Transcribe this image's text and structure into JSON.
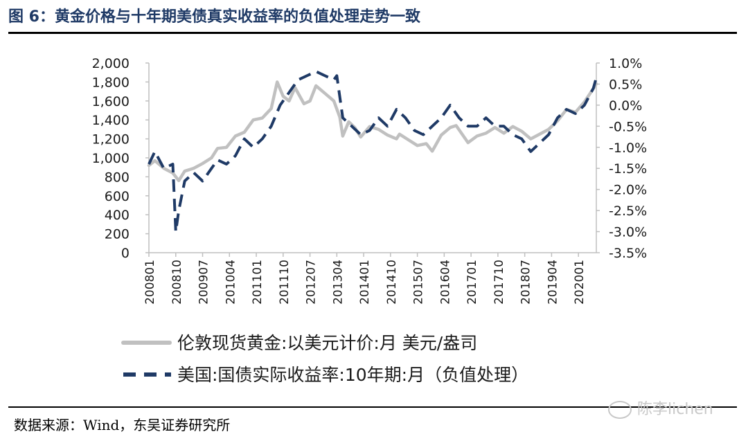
{
  "header": {
    "title": "图 6：黄金价格与十年期美债真实收益率的负值处理走势一致"
  },
  "footer": {
    "source": "数据来源：Wind，东吴证券研究所",
    "watermark": "陈李lichen"
  },
  "chart_data": {
    "type": "line",
    "title": "",
    "x_ticks": [
      "200801",
      "200810",
      "200907",
      "201004",
      "201101",
      "201110",
      "201207",
      "201304",
      "201401",
      "201410",
      "201507",
      "201604",
      "201701",
      "201710",
      "201807",
      "201904",
      "202001"
    ],
    "left_axis": {
      "ticks": [
        "2,000",
        "1,800",
        "1,600",
        "1,400",
        "1,200",
        "1,000",
        "800",
        "600",
        "400",
        "200",
        "0"
      ],
      "ylim": [
        0,
        2000
      ]
    },
    "right_axis": {
      "ticks": [
        "1.0%",
        "0.5%",
        "0.0%",
        "-0.5%",
        "-1.0%",
        "-1.5%",
        "-2.0%",
        "-2.5%",
        "-3.0%",
        "-3.5%"
      ],
      "ylim": [
        -3.5,
        1.0
      ]
    },
    "legend_placement": "bottom",
    "grid": false,
    "series": [
      {
        "name": "伦敦现货黄金:以美元计价:月 美元/盎司",
        "axis": "left",
        "style": "solid",
        "color": "#c0c0c0",
        "points": [
          [
            "2008-01",
            920
          ],
          [
            "2008-03",
            970
          ],
          [
            "2008-06",
            890
          ],
          [
            "2008-09",
            840
          ],
          [
            "2008-11",
            760
          ],
          [
            "2009-01",
            860
          ],
          [
            "2009-04",
            890
          ],
          [
            "2009-07",
            940
          ],
          [
            "2009-10",
            1000
          ],
          [
            "2009-12",
            1100
          ],
          [
            "2010-03",
            1110
          ],
          [
            "2010-06",
            1230
          ],
          [
            "2010-09",
            1270
          ],
          [
            "2010-12",
            1400
          ],
          [
            "2011-03",
            1420
          ],
          [
            "2011-06",
            1520
          ],
          [
            "2011-08",
            1800
          ],
          [
            "2011-10",
            1650
          ],
          [
            "2011-12",
            1600
          ],
          [
            "2012-02",
            1740
          ],
          [
            "2012-05",
            1570
          ],
          [
            "2012-07",
            1600
          ],
          [
            "2012-09",
            1760
          ],
          [
            "2012-12",
            1680
          ],
          [
            "2013-03",
            1600
          ],
          [
            "2013-05",
            1430
          ],
          [
            "2013-06",
            1230
          ],
          [
            "2013-08",
            1380
          ],
          [
            "2013-10",
            1320
          ],
          [
            "2013-12",
            1220
          ],
          [
            "2014-03",
            1330
          ],
          [
            "2014-06",
            1300
          ],
          [
            "2014-09",
            1240
          ],
          [
            "2014-12",
            1200
          ],
          [
            "2015-01",
            1250
          ],
          [
            "2015-04",
            1190
          ],
          [
            "2015-07",
            1130
          ],
          [
            "2015-10",
            1150
          ],
          [
            "2015-12",
            1070
          ],
          [
            "2016-03",
            1240
          ],
          [
            "2016-06",
            1320
          ],
          [
            "2016-08",
            1340
          ],
          [
            "2016-12",
            1160
          ],
          [
            "2017-03",
            1230
          ],
          [
            "2017-06",
            1260
          ],
          [
            "2017-09",
            1320
          ],
          [
            "2017-12",
            1260
          ],
          [
            "2018-03",
            1330
          ],
          [
            "2018-06",
            1280
          ],
          [
            "2018-09",
            1200
          ],
          [
            "2018-12",
            1250
          ],
          [
            "2019-03",
            1300
          ],
          [
            "2019-06",
            1390
          ],
          [
            "2019-09",
            1510
          ],
          [
            "2019-12",
            1480
          ],
          [
            "2020-03",
            1590
          ],
          [
            "2020-06",
            1730
          ],
          [
            "2020-07",
            1780
          ]
        ]
      },
      {
        "name": "美国:国债实际收益率:10年期:月（负值处理）",
        "axis": "right",
        "style": "dashed",
        "color": "#1f3a66",
        "points": [
          [
            "2008-01",
            -1.4
          ],
          [
            "2008-03",
            -1.1
          ],
          [
            "2008-06",
            -1.5
          ],
          [
            "2008-09",
            -1.4
          ],
          [
            "2008-10",
            -3.0
          ],
          [
            "2008-11",
            -2.5
          ],
          [
            "2009-01",
            -1.8
          ],
          [
            "2009-04",
            -1.6
          ],
          [
            "2009-07",
            -1.8
          ],
          [
            "2009-10",
            -1.5
          ],
          [
            "2009-12",
            -1.3
          ],
          [
            "2010-03",
            -1.4
          ],
          [
            "2010-06",
            -1.2
          ],
          [
            "2010-09",
            -0.8
          ],
          [
            "2010-12",
            -1.0
          ],
          [
            "2011-03",
            -0.8
          ],
          [
            "2011-06",
            -0.5
          ],
          [
            "2011-09",
            0.0
          ],
          [
            "2011-12",
            0.3
          ],
          [
            "2012-03",
            0.6
          ],
          [
            "2012-06",
            0.7
          ],
          [
            "2012-09",
            0.8
          ],
          [
            "2012-12",
            0.7
          ],
          [
            "2013-03",
            0.6
          ],
          [
            "2013-04",
            0.7
          ],
          [
            "2013-06",
            -0.3
          ],
          [
            "2013-09",
            -0.5
          ],
          [
            "2013-12",
            -0.7
          ],
          [
            "2014-03",
            -0.6
          ],
          [
            "2014-06",
            -0.3
          ],
          [
            "2014-09",
            -0.5
          ],
          [
            "2014-12",
            -0.1
          ],
          [
            "2015-03",
            -0.3
          ],
          [
            "2015-06",
            -0.6
          ],
          [
            "2015-09",
            -0.7
          ],
          [
            "2015-12",
            -0.5
          ],
          [
            "2016-03",
            -0.3
          ],
          [
            "2016-06",
            0.0
          ],
          [
            "2016-09",
            -0.3
          ],
          [
            "2016-12",
            -0.5
          ],
          [
            "2017-03",
            -0.5
          ],
          [
            "2017-06",
            -0.3
          ],
          [
            "2017-09",
            -0.5
          ],
          [
            "2017-12",
            -0.5
          ],
          [
            "2018-03",
            -0.7
          ],
          [
            "2018-06",
            -0.8
          ],
          [
            "2018-09",
            -1.1
          ],
          [
            "2018-12",
            -0.9
          ],
          [
            "2019-03",
            -0.7
          ],
          [
            "2019-06",
            -0.3
          ],
          [
            "2019-09",
            -0.1
          ],
          [
            "2019-12",
            -0.2
          ],
          [
            "2020-03",
            0.0
          ],
          [
            "2020-06",
            0.4
          ],
          [
            "2020-07",
            0.65
          ]
        ]
      }
    ]
  }
}
